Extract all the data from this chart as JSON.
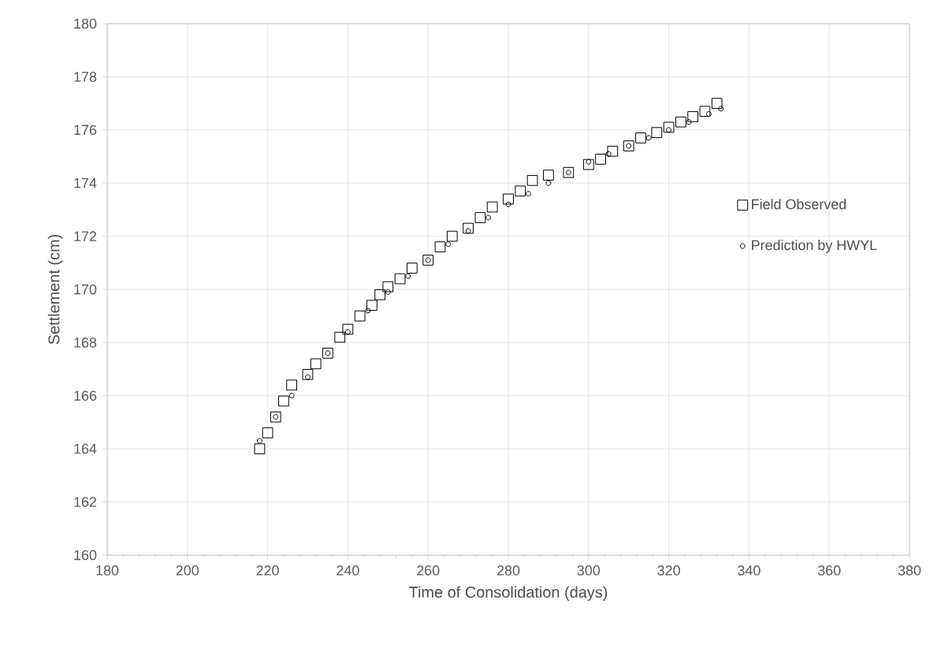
{
  "chart_data": {
    "type": "scatter",
    "xlabel": "Time of Consolidation (days)",
    "ylabel": "Settlement (cm)",
    "xlim": [
      180,
      380
    ],
    "ylim": [
      160,
      180
    ],
    "xticks": [
      180,
      200,
      220,
      240,
      260,
      280,
      300,
      320,
      340,
      360,
      380
    ],
    "yticks": [
      160,
      162,
      164,
      166,
      168,
      170,
      172,
      174,
      176,
      178,
      180
    ],
    "grid": true,
    "legend": "right",
    "series": [
      {
        "name": "Field Observed",
        "color": "#000000",
        "marker": "square",
        "x": [
          218,
          220,
          222,
          224,
          226,
          230,
          232,
          235,
          238,
          240,
          243,
          246,
          248,
          250,
          253,
          256,
          260,
          263,
          266,
          270,
          273,
          276,
          280,
          283,
          286,
          290,
          295,
          300,
          303,
          306,
          310,
          313,
          317,
          320,
          323,
          326,
          329,
          332
        ],
        "values": [
          164.0,
          164.6,
          165.2,
          165.8,
          166.4,
          166.8,
          167.2,
          167.6,
          168.2,
          168.5,
          169.0,
          169.4,
          169.8,
          170.1,
          170.4,
          170.8,
          171.1,
          171.6,
          172.0,
          172.3,
          172.7,
          173.1,
          173.4,
          173.7,
          174.1,
          174.3,
          174.4,
          174.7,
          174.9,
          175.2,
          175.4,
          175.7,
          175.9,
          176.1,
          176.3,
          176.5,
          176.7,
          177.0
        ]
      },
      {
        "name": "Prediction by HWYL",
        "color": "#000000",
        "marker": "circle",
        "x": [
          218,
          222,
          226,
          230,
          235,
          240,
          245,
          250,
          255,
          260,
          265,
          270,
          275,
          280,
          285,
          290,
          295,
          300,
          305,
          310,
          315,
          320,
          325,
          330,
          333
        ],
        "values": [
          164.3,
          165.2,
          166.0,
          166.7,
          167.6,
          168.4,
          169.2,
          169.9,
          170.5,
          171.1,
          171.7,
          172.2,
          172.7,
          173.2,
          173.6,
          174.0,
          174.4,
          174.8,
          175.1,
          175.4,
          175.7,
          176.0,
          176.3,
          176.6,
          176.8
        ]
      }
    ]
  }
}
